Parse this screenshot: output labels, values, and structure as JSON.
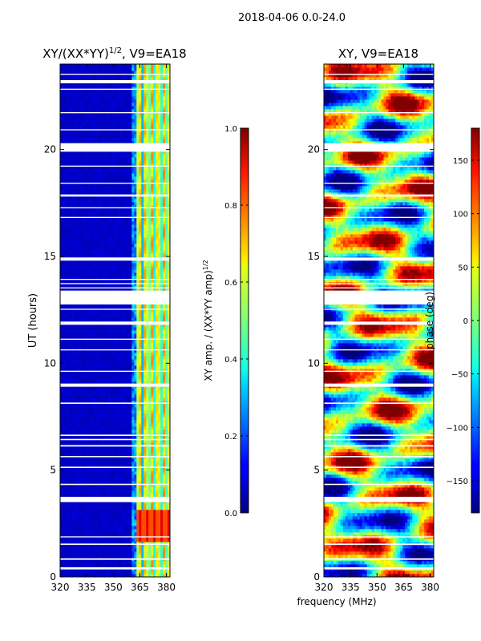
{
  "suptitle": "2018-04-06 0.0-24.0",
  "chart_data": [
    {
      "type": "heatmap",
      "title": "XY/(XX*YY)^{1/2}, V9=EA18",
      "title_main": "XY/(XX*YY)",
      "title_exp": "1/2",
      "title_suffix": ", V9=EA18",
      "xlabel": "",
      "ylabel": "UT (hours)",
      "xlim": [
        320,
        382
      ],
      "ylim": [
        0,
        24
      ],
      "xticks": [
        "320",
        "335",
        "350",
        "365",
        "380"
      ],
      "xtick_values": [
        320,
        335,
        350,
        365,
        380
      ],
      "yticks": [
        "0",
        "5",
        "10",
        "15",
        "20"
      ],
      "ytick_values": [
        0,
        5,
        10,
        15,
        20
      ],
      "colormap": "jet",
      "colorbar": {
        "label": "XY amp. / (XX*YY amp)^{1/2}",
        "label_main": "XY amp. / (XX*YY amp)",
        "label_exp": "1/2",
        "range": [
          0,
          1
        ],
        "ticks": [
          "0.0",
          "0.2",
          "0.4",
          "0.6",
          "0.8",
          "1.0"
        ],
        "tick_values": [
          0,
          0.2,
          0.4,
          0.6,
          0.8,
          1.0
        ]
      },
      "description_values": {
        "background_amp": 0.05,
        "band_amp_low": 0.3,
        "band_amp_high": 0.75,
        "band_freq_range": [
          363,
          382
        ],
        "burst_amp": 0.9,
        "burst_time_range": [
          1.6,
          3.2
        ]
      }
    },
    {
      "type": "heatmap",
      "title": "XY, V9=EA18",
      "xlabel": "frequency (MHz)",
      "ylabel": "",
      "xlim": [
        320,
        382
      ],
      "ylim": [
        0,
        24
      ],
      "xticks": [
        "320",
        "335",
        "350",
        "365",
        "380"
      ],
      "xtick_values": [
        320,
        335,
        350,
        365,
        380
      ],
      "yticks": [
        "0",
        "5",
        "10",
        "15",
        "20"
      ],
      "ytick_values": [
        0,
        5,
        10,
        15,
        20
      ],
      "colormap": "jet",
      "colorbar": {
        "label": "phase (deg)",
        "range": [
          -180,
          180
        ],
        "ticks": [
          "−150",
          "−100",
          "−50",
          "0",
          "50",
          "100",
          "150"
        ],
        "tick_values": [
          -150,
          -100,
          -50,
          0,
          50,
          100,
          150
        ]
      }
    }
  ],
  "gaps_hours": [
    [
      0.35,
      0.45
    ],
    [
      0.8,
      0.87
    ],
    [
      1.5,
      1.56
    ],
    [
      1.85,
      1.9
    ],
    [
      3.5,
      3.75
    ],
    [
      4.3,
      4.36
    ],
    [
      5.1,
      5.16
    ],
    [
      5.6,
      5.66
    ],
    [
      6.1,
      6.17
    ],
    [
      6.4,
      6.46
    ],
    [
      6.6,
      6.66
    ],
    [
      8.1,
      8.16
    ],
    [
      8.9,
      9.05
    ],
    [
      9.6,
      9.65
    ],
    [
      10.6,
      10.65
    ],
    [
      11.1,
      11.15
    ],
    [
      11.8,
      11.95
    ],
    [
      12.5,
      12.55
    ],
    [
      12.75,
      13.4
    ],
    [
      13.5,
      13.55
    ],
    [
      13.7,
      13.75
    ],
    [
      13.9,
      13.95
    ],
    [
      14.8,
      14.95
    ],
    [
      16.8,
      16.85
    ],
    [
      17.25,
      17.3
    ],
    [
      17.8,
      17.9
    ],
    [
      18.4,
      18.45
    ],
    [
      19.2,
      19.25
    ],
    [
      19.9,
      20.3
    ],
    [
      20.9,
      20.95
    ],
    [
      21.7,
      21.75
    ],
    [
      22.8,
      22.85
    ],
    [
      23.1,
      23.25
    ],
    [
      23.5,
      23.55
    ]
  ]
}
